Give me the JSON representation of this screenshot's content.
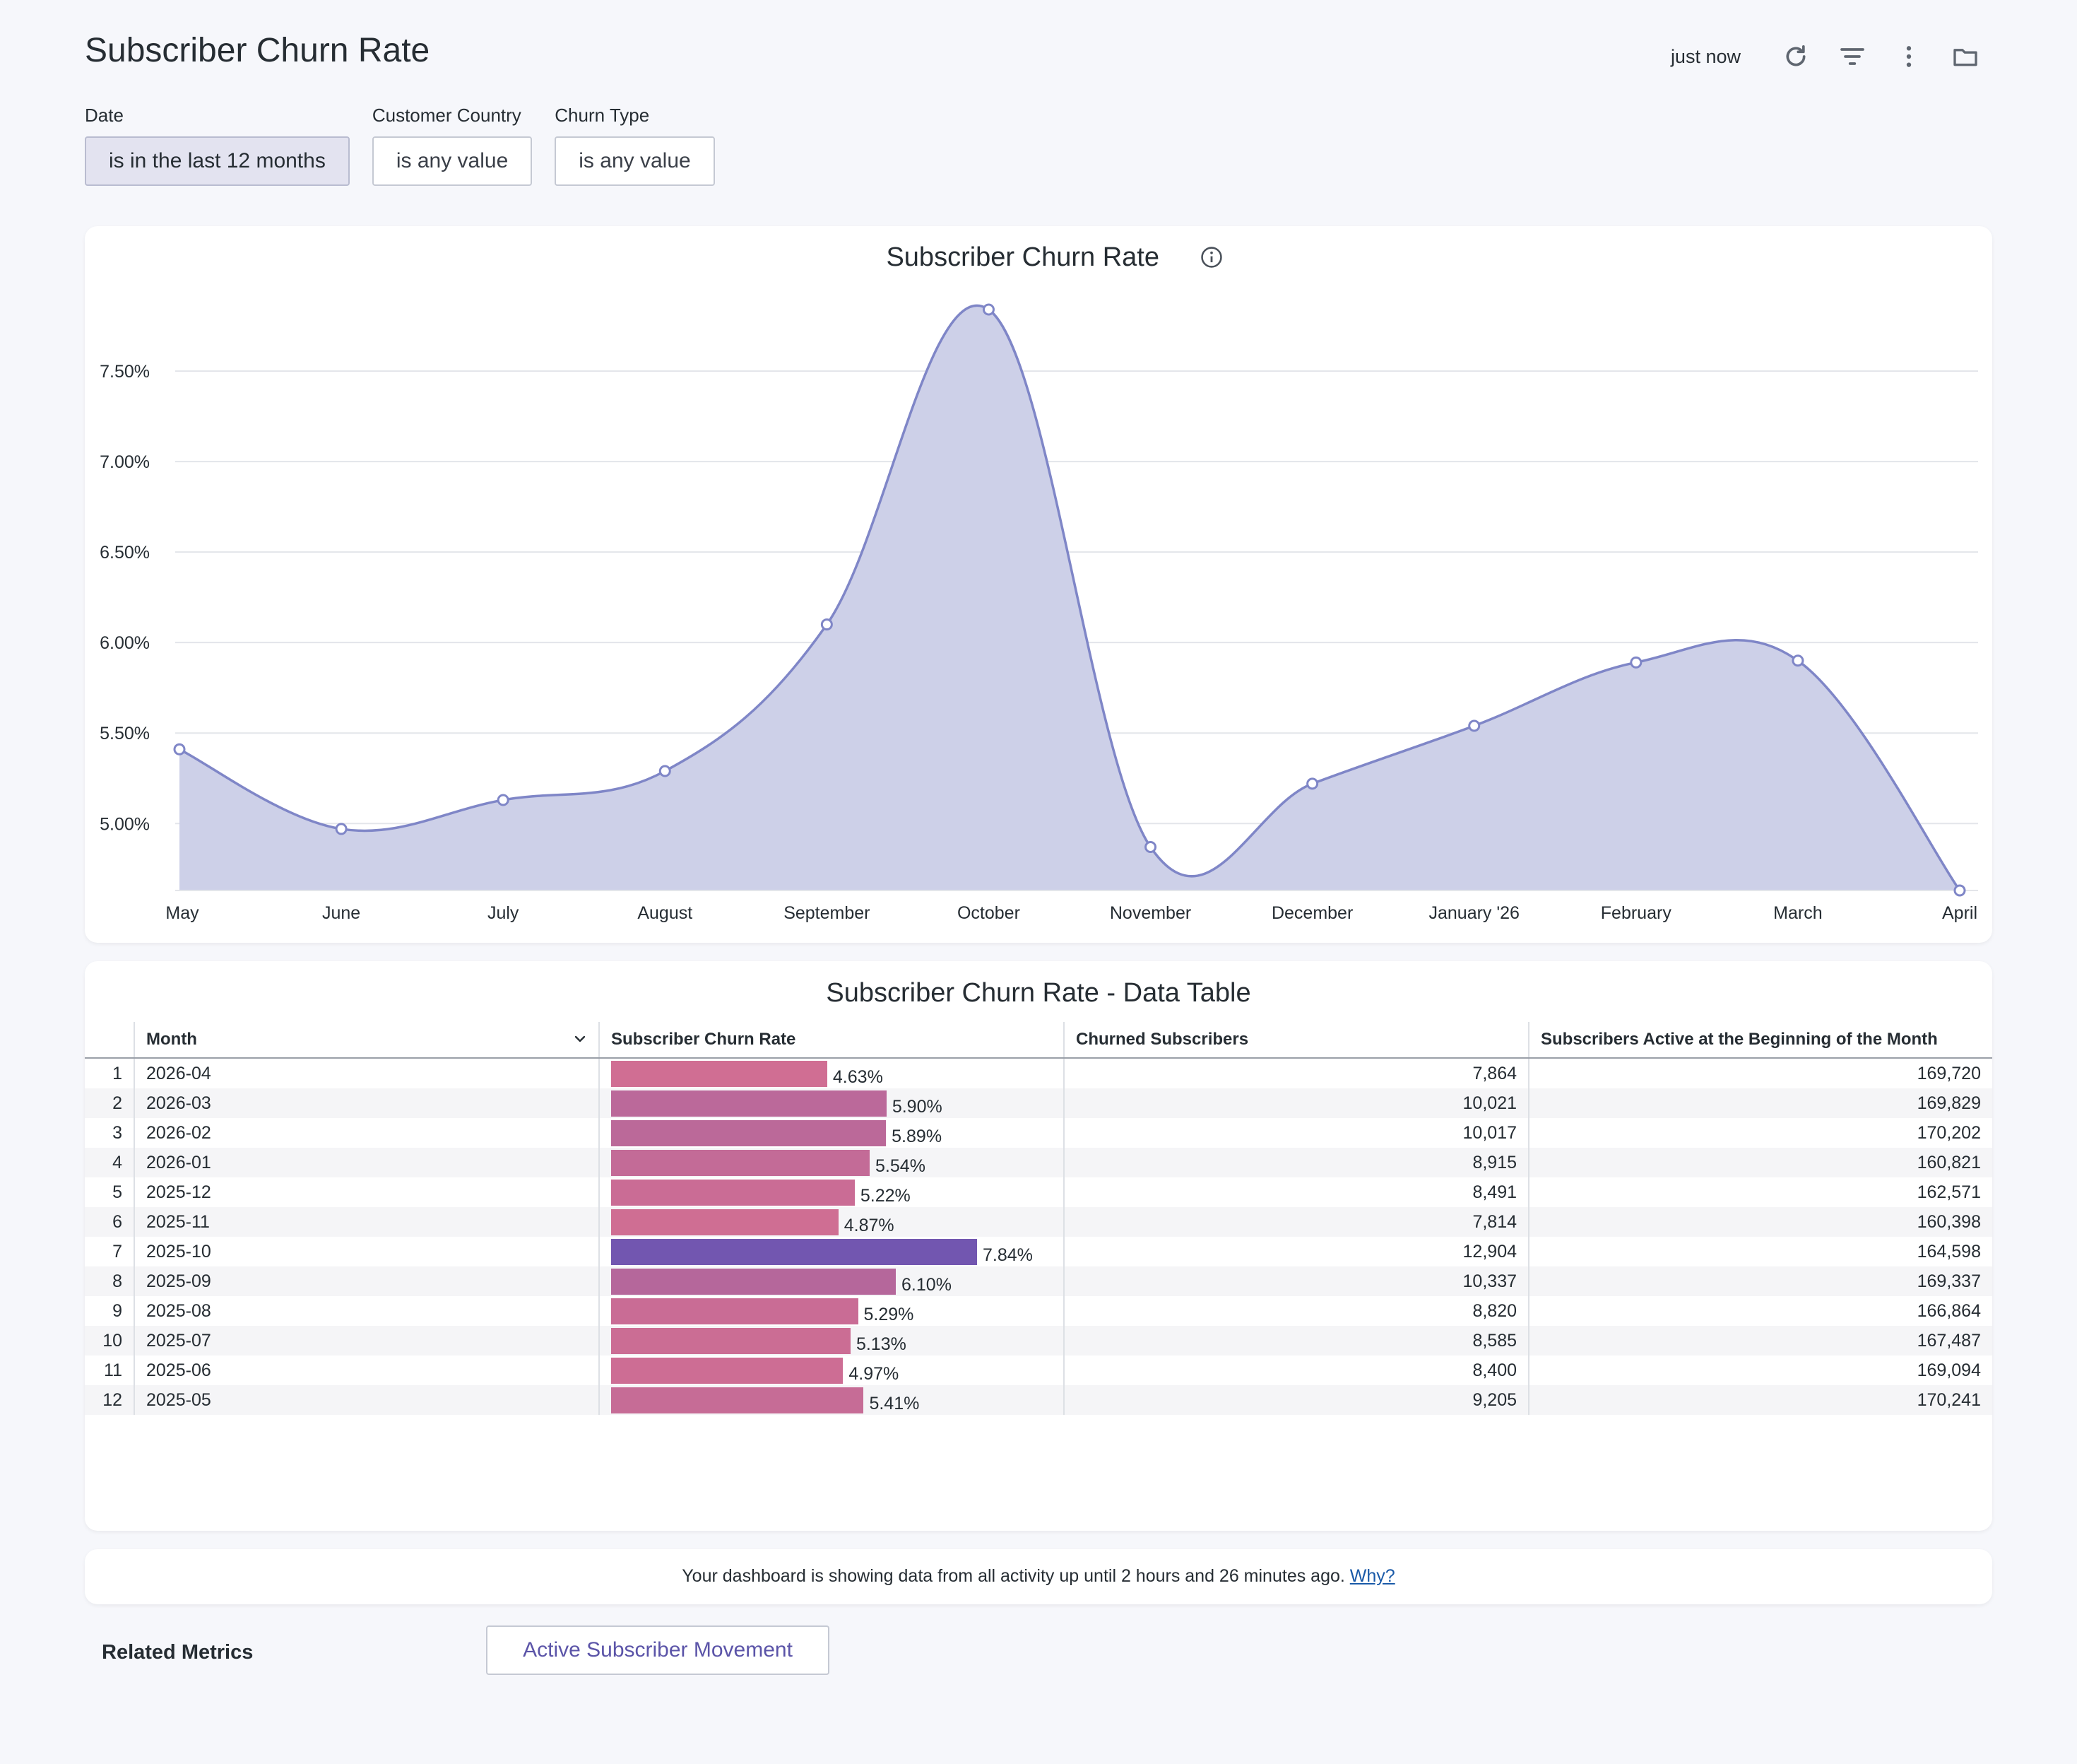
{
  "page": {
    "title": "Subscriber Churn Rate"
  },
  "topbar": {
    "timestamp": "just now"
  },
  "filters": [
    {
      "label": "Date",
      "value": "is in the last 12 months"
    },
    {
      "label": "Customer Country",
      "value": "is any value"
    },
    {
      "label": "Churn Type",
      "value": "is any value"
    }
  ],
  "chart": {
    "title": "Subscriber Churn Rate"
  },
  "chart_data": {
    "type": "area",
    "title": "Subscriber Churn Rate",
    "categories": [
      "May",
      "June",
      "July",
      "August",
      "September",
      "October",
      "November",
      "December",
      "January '26",
      "February",
      "March",
      "April"
    ],
    "values": [
      5.41,
      4.97,
      5.13,
      5.29,
      6.1,
      7.84,
      4.87,
      5.22,
      5.54,
      5.89,
      5.9,
      4.63
    ],
    "ytick_labels": [
      "5.00%",
      "5.50%",
      "6.00%",
      "6.50%",
      "7.00%",
      "7.50%"
    ],
    "yticks": [
      5.0,
      5.5,
      6.0,
      6.5,
      7.0,
      7.5
    ],
    "ylim": [
      4.63,
      7.84
    ],
    "grid": true,
    "color": "#7f86c7",
    "fill": "#cdd0e8"
  },
  "table": {
    "title": "Subscriber Churn Rate - Data Table",
    "headers": [
      "Month",
      "Subscriber Churn Rate",
      "Churned Subscribers",
      "Subscribers Active at the Beginning of the Month"
    ],
    "rows": [
      {
        "idx": "1",
        "month": "2026-04",
        "rate": 4.63,
        "rate_label": "4.63%",
        "churned": "7,864",
        "active": "169,720"
      },
      {
        "idx": "2",
        "month": "2026-03",
        "rate": 5.9,
        "rate_label": "5.90%",
        "churned": "10,021",
        "active": "169,829"
      },
      {
        "idx": "3",
        "month": "2026-02",
        "rate": 5.89,
        "rate_label": "5.89%",
        "churned": "10,017",
        "active": "170,202"
      },
      {
        "idx": "4",
        "month": "2026-01",
        "rate": 5.54,
        "rate_label": "5.54%",
        "churned": "8,915",
        "active": "160,821"
      },
      {
        "idx": "5",
        "month": "2025-12",
        "rate": 5.22,
        "rate_label": "5.22%",
        "churned": "8,491",
        "active": "162,571"
      },
      {
        "idx": "6",
        "month": "2025-11",
        "rate": 4.87,
        "rate_label": "4.87%",
        "churned": "7,814",
        "active": "160,398"
      },
      {
        "idx": "7",
        "month": "2025-10",
        "rate": 7.84,
        "rate_label": "7.84%",
        "churned": "12,904",
        "active": "164,598"
      },
      {
        "idx": "8",
        "month": "2025-09",
        "rate": 6.1,
        "rate_label": "6.10%",
        "churned": "10,337",
        "active": "169,337"
      },
      {
        "idx": "9",
        "month": "2025-08",
        "rate": 5.29,
        "rate_label": "5.29%",
        "churned": "8,820",
        "active": "166,864"
      },
      {
        "idx": "10",
        "month": "2025-07",
        "rate": 5.13,
        "rate_label": "5.13%",
        "churned": "8,585",
        "active": "167,487"
      },
      {
        "idx": "11",
        "month": "2025-06",
        "rate": 4.97,
        "rate_label": "4.97%",
        "churned": "8,400",
        "active": "169,094"
      },
      {
        "idx": "12",
        "month": "2025-05",
        "rate": 5.41,
        "rate_label": "5.41%",
        "churned": "9,205",
        "active": "170,241"
      }
    ],
    "bar_colors": {
      "low": "#d06e93",
      "high": "#7256b0"
    }
  },
  "note": {
    "text": "Your dashboard is showing data from all activity up until 2 hours and 26 minutes ago.",
    "link": "Why?"
  },
  "related": {
    "label": "Related Metrics",
    "button": "Active Subscriber Movement"
  },
  "icons": {
    "refresh": "refresh-icon",
    "filter": "filter-icon",
    "more": "more-vertical-icon",
    "folder": "folder-icon",
    "info": "info-icon",
    "sort": "chevron-down-icon"
  }
}
